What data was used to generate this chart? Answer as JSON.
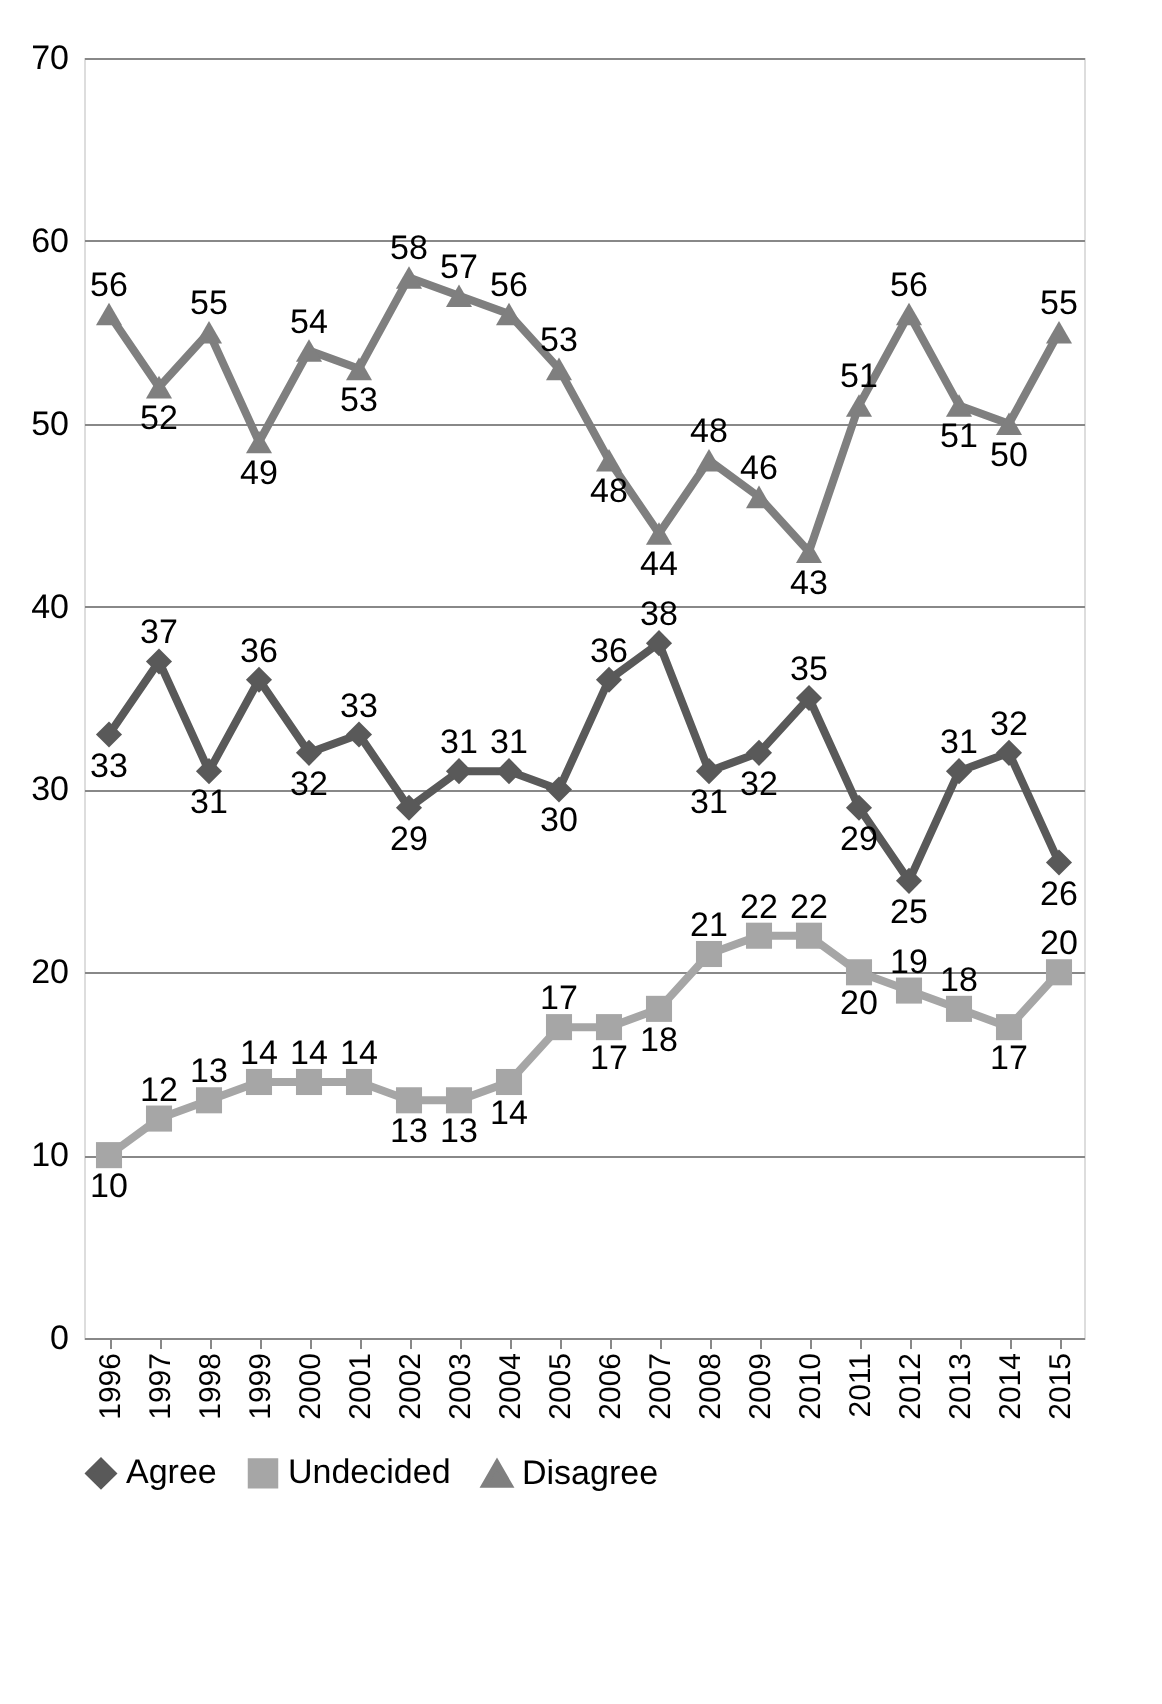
{
  "chart_data": {
    "type": "line",
    "categories": [
      "1996",
      "1997",
      "1998",
      "1999",
      "2000",
      "2001",
      "2002",
      "2003",
      "2004",
      "2005",
      "2006",
      "2007",
      "2008",
      "2009",
      "2010",
      "2011",
      "2012",
      "2013",
      "2014",
      "2015"
    ],
    "series": [
      {
        "name": "Agree",
        "color": "#595959",
        "marker": "diamond",
        "values": [
          33,
          37,
          31,
          36,
          32,
          33,
          29,
          31,
          31,
          30,
          36,
          38,
          31,
          32,
          35,
          29,
          25,
          31,
          32,
          26
        ]
      },
      {
        "name": "Undecided",
        "color": "#a6a6a6",
        "marker": "square",
        "values": [
          10,
          12,
          13,
          14,
          14,
          14,
          13,
          13,
          14,
          17,
          17,
          18,
          21,
          22,
          22,
          20,
          19,
          18,
          17,
          20
        ]
      },
      {
        "name": "Disagree",
        "color": "#7f7f7f",
        "marker": "triangle",
        "values": [
          56,
          52,
          55,
          49,
          54,
          53,
          58,
          57,
          56,
          53,
          48,
          44,
          48,
          46,
          43,
          51,
          56,
          51,
          50,
          55
        ]
      }
    ],
    "ylim": [
      0,
      70
    ],
    "yticks": [
      0,
      10,
      20,
      30,
      40,
      50,
      60,
      70
    ],
    "grid": "y",
    "legend": "bottom",
    "data_labels": true,
    "line_style": "solid"
  }
}
